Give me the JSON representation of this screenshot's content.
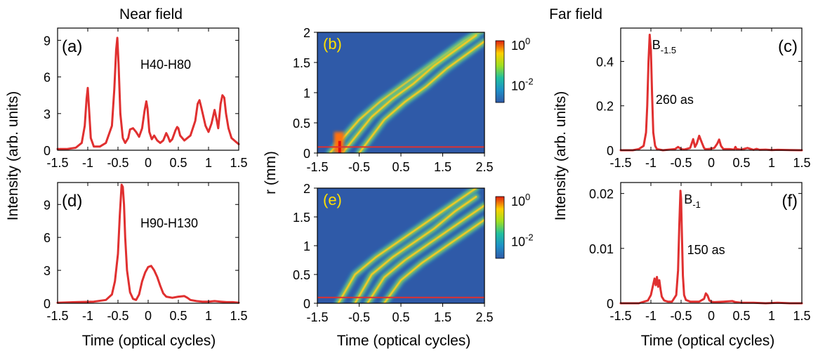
{
  "figure": {
    "near_field_title": "Near field",
    "far_field_title": "Far field",
    "ylabel_left": "Intensity (arb. units)",
    "ylabel_right": "Intensity (arb. units)",
    "ylabel_map": "r (mm)",
    "xlabel": "Time (optical cycles)"
  },
  "colors": {
    "line": "#e03030",
    "map_bg": "#2f5aa8",
    "text": "#000000",
    "map_label": "#ffe000"
  },
  "chart_data": [
    {
      "id": "a",
      "type": "line",
      "panel_label": "(a)",
      "annotation": "H40-H80",
      "xlim": [
        -1.5,
        1.5
      ],
      "ylim": [
        0,
        10
      ],
      "xticks": [
        "-1.5",
        "-1",
        "-0.5",
        "0",
        "0.5",
        "1",
        "1.5"
      ],
      "xtick_values": [
        -1.5,
        -1,
        -0.5,
        0,
        0.5,
        1,
        1.5
      ],
      "yticks": [
        "0",
        "3",
        "6",
        "9"
      ],
      "ytick_values": [
        0,
        3,
        6,
        9
      ],
      "series": [
        {
          "x": [
            -1.5,
            -1.35,
            -1.2,
            -1.1,
            -1.05,
            -1.02,
            -1.0,
            -0.98,
            -0.95,
            -0.9,
            -0.8,
            -0.7,
            -0.6,
            -0.56,
            -0.53,
            -0.51,
            -0.49,
            -0.46,
            -0.42,
            -0.38,
            -0.33,
            -0.3,
            -0.25,
            -0.2,
            -0.15,
            -0.1,
            -0.06,
            -0.03,
            -0.01,
            0.02,
            0.06,
            0.1,
            0.15,
            0.2,
            0.25,
            0.3,
            0.33,
            0.36,
            0.4,
            0.45,
            0.48,
            0.5,
            0.53,
            0.6,
            0.7,
            0.78,
            0.82,
            0.85,
            0.88,
            0.95,
            1.0,
            1.05,
            1.1,
            1.13,
            1.16,
            1.2,
            1.23,
            1.26,
            1.29,
            1.33,
            1.38,
            1.45,
            1.5
          ],
          "y": [
            0.1,
            0.1,
            0.2,
            0.6,
            2.0,
            4.2,
            5.1,
            3.5,
            1.0,
            0.3,
            0.3,
            0.6,
            2.0,
            5.0,
            8.2,
            9.2,
            7.0,
            3.0,
            1.0,
            0.6,
            1.0,
            1.7,
            1.8,
            1.5,
            1.1,
            1.8,
            3.2,
            4.0,
            3.4,
            1.5,
            0.9,
            1.2,
            0.8,
            0.6,
            0.8,
            1.4,
            1.1,
            0.7,
            0.9,
            1.6,
            1.9,
            1.8,
            1.2,
            0.8,
            1.2,
            2.4,
            3.8,
            4.1,
            3.5,
            2.0,
            1.5,
            2.2,
            3.3,
            2.6,
            1.8,
            3.8,
            4.5,
            4.3,
            3.0,
            1.8,
            1.0,
            0.7,
            0.5
          ]
        }
      ]
    },
    {
      "id": "d",
      "type": "line",
      "panel_label": "(d)",
      "annotation": "H90-H130",
      "xlim": [
        -1.5,
        1.5
      ],
      "ylim": [
        0,
        11
      ],
      "xticks": [
        "-1.5",
        "-1",
        "-0.5",
        "0",
        "0.5",
        "1",
        "1.5"
      ],
      "xtick_values": [
        -1.5,
        -1,
        -0.5,
        0,
        0.5,
        1,
        1.5
      ],
      "yticks": [
        "0",
        "3",
        "6",
        "9"
      ],
      "ytick_values": [
        0,
        3,
        6,
        9
      ],
      "series": [
        {
          "x": [
            -1.5,
            -1.2,
            -0.9,
            -0.7,
            -0.6,
            -0.55,
            -0.5,
            -0.47,
            -0.44,
            -0.42,
            -0.4,
            -0.38,
            -0.35,
            -0.3,
            -0.25,
            -0.2,
            -0.15,
            -0.1,
            -0.05,
            0.0,
            0.05,
            0.1,
            0.15,
            0.2,
            0.25,
            0.3,
            0.4,
            0.5,
            0.6,
            0.65,
            0.7,
            0.8,
            0.9,
            1.0,
            1.1,
            1.2,
            1.3,
            1.4,
            1.5
          ],
          "y": [
            0.05,
            0.1,
            0.15,
            0.3,
            0.8,
            2.0,
            4.5,
            8.0,
            10.8,
            10.6,
            9.0,
            6.0,
            3.0,
            1.0,
            0.4,
            0.3,
            0.8,
            2.0,
            2.8,
            3.3,
            3.4,
            3.0,
            2.4,
            1.6,
            0.9,
            0.6,
            0.5,
            0.6,
            0.65,
            0.5,
            0.3,
            0.2,
            0.15,
            0.15,
            0.2,
            0.15,
            0.1,
            0.1,
            0.05
          ]
        }
      ]
    },
    {
      "id": "c",
      "type": "line",
      "panel_label": "(c)",
      "annotation": "B",
      "annotation_sub": "-1.5",
      "annotation_extra": "260 as",
      "xlim": [
        -1.5,
        1.5
      ],
      "ylim": [
        0,
        0.55
      ],
      "xticks": [
        "-1.5",
        "-1",
        "-0.5",
        "0",
        "0.5",
        "1",
        "1.5"
      ],
      "xtick_values": [
        -1.5,
        -1,
        -0.5,
        0,
        0.5,
        1,
        1.5
      ],
      "yticks": [
        "0",
        "0.2",
        "0.4"
      ],
      "ytick_values": [
        0,
        0.2,
        0.4
      ],
      "series": [
        {
          "x": [
            -1.5,
            -1.3,
            -1.2,
            -1.12,
            -1.08,
            -1.06,
            -1.04,
            -1.02,
            -1.0,
            -0.98,
            -0.96,
            -0.93,
            -0.9,
            -0.8,
            -0.7,
            -0.6,
            -0.55,
            -0.5,
            -0.45,
            -0.35,
            -0.3,
            -0.27,
            -0.24,
            -0.2,
            -0.15,
            -0.12,
            -0.1,
            -0.05,
            0.05,
            0.1,
            0.13,
            0.16,
            0.2,
            0.3,
            0.38,
            0.4,
            0.42,
            0.5,
            0.6,
            0.7,
            0.75,
            0.8,
            0.9,
            1.0,
            1.1,
            1.3,
            1.5
          ],
          "y": [
            0.0,
            0.0,
            0.005,
            0.02,
            0.08,
            0.2,
            0.4,
            0.52,
            0.45,
            0.25,
            0.08,
            0.02,
            0.005,
            0.0,
            0.003,
            0.005,
            0.015,
            0.005,
            0.003,
            0.01,
            0.05,
            0.015,
            0.03,
            0.065,
            0.03,
            0.01,
            0.005,
            0.005,
            0.01,
            0.03,
            0.048,
            0.02,
            0.005,
            0.005,
            0.003,
            0.015,
            0.005,
            0.003,
            0.01,
            0.002,
            0.006,
            0.002,
            0.003,
            0.001,
            0.002,
            0.001,
            0.0
          ]
        }
      ]
    },
    {
      "id": "f",
      "type": "line",
      "panel_label": "(f)",
      "annotation": "B",
      "annotation_sub": "-1",
      "annotation_extra": "150 as",
      "xlim": [
        -1.5,
        1.5
      ],
      "ylim": [
        0,
        0.022
      ],
      "xticks": [
        "-1.5",
        "-1",
        "-0.5",
        "0",
        "0.5",
        "1",
        "1.5"
      ],
      "xtick_values": [
        -1.5,
        -1,
        -0.5,
        0,
        0.5,
        1,
        1.5
      ],
      "yticks": [
        "0",
        "0.01",
        "0.02"
      ],
      "ytick_values": [
        0,
        0.01,
        0.02
      ],
      "series": [
        {
          "x": [
            -1.5,
            -1.2,
            -1.05,
            -1.0,
            -0.97,
            -0.94,
            -0.92,
            -0.9,
            -0.88,
            -0.86,
            -0.84,
            -0.82,
            -0.78,
            -0.72,
            -0.65,
            -0.58,
            -0.55,
            -0.53,
            -0.51,
            -0.5,
            -0.49,
            -0.47,
            -0.45,
            -0.42,
            -0.35,
            -0.2,
            -0.12,
            -0.09,
            -0.06,
            -0.03,
            0.0,
            0.05,
            0.2,
            0.35,
            0.4,
            0.5,
            0.7,
            0.9,
            1.1,
            1.3,
            1.5
          ],
          "y": [
            0.0,
            0.0,
            0.0005,
            0.0015,
            0.003,
            0.0045,
            0.0033,
            0.0048,
            0.003,
            0.0042,
            0.0025,
            0.0012,
            0.0005,
            0.0003,
            0.0003,
            0.0015,
            0.006,
            0.014,
            0.0205,
            0.019,
            0.014,
            0.005,
            0.0015,
            0.0006,
            0.0003,
            0.0003,
            0.0008,
            0.0018,
            0.0014,
            0.0005,
            0.0003,
            0.0002,
            0.0003,
            0.0004,
            0.0002,
            0.0001,
            0.0001,
            0.0,
            0.0001,
            0.0,
            0.0
          ]
        }
      ]
    },
    {
      "id": "b",
      "type": "heatmap",
      "panel_label": "(b)",
      "xlim": [
        -1.5,
        2.5
      ],
      "ylim": [
        0,
        2
      ],
      "xticks": [
        "-1.5",
        "-0.5",
        "0.5",
        "1.5",
        "2.5"
      ],
      "xtick_values": [
        -1.5,
        -0.5,
        0.5,
        1.5,
        2.5
      ],
      "yticks": [
        "0",
        "0.5",
        "1",
        "1.5",
        "2"
      ],
      "ytick_values": [
        0,
        0.5,
        1,
        1.5,
        2
      ],
      "colorbar": {
        "scale": "log",
        "ticks": [
          "10",
          "10"
        ],
        "tick_exponents": [
          "0",
          "-2"
        ]
      },
      "reference_line_r": 0.1,
      "traces": [
        {
          "x": [
            -1.2,
            -0.5,
            0.0,
            0.5,
            1.0,
            1.5,
            2.0,
            2.5
          ],
          "r": [
            0.0,
            0.55,
            0.85,
            1.1,
            1.35,
            1.6,
            1.85,
            2.05
          ]
        },
        {
          "x": [
            -0.9,
            -0.2,
            0.3,
            0.8,
            1.3,
            1.8,
            2.3
          ],
          "r": [
            0.0,
            0.6,
            0.9,
            1.15,
            1.45,
            1.7,
            1.95
          ]
        },
        {
          "x": [
            -0.5,
            0.1,
            0.6,
            1.1,
            1.6,
            2.1,
            2.5
          ],
          "r": [
            0.0,
            0.55,
            0.85,
            1.1,
            1.4,
            1.65,
            1.85
          ]
        }
      ]
    },
    {
      "id": "e",
      "type": "heatmap",
      "panel_label": "(e)",
      "xlim": [
        -1.5,
        2.5
      ],
      "ylim": [
        0,
        2
      ],
      "xticks": [
        "-1.5",
        "-0.5",
        "0.5",
        "1.5",
        "2.5"
      ],
      "xtick_values": [
        -1.5,
        -0.5,
        0.5,
        1.5,
        2.5
      ],
      "yticks": [
        "0",
        "0.5",
        "1",
        "1.5",
        "2"
      ],
      "ytick_values": [
        0,
        0.5,
        1,
        1.5,
        2
      ],
      "colorbar": {
        "scale": "log",
        "ticks": [
          "10",
          "10"
        ],
        "tick_exponents": [
          "0",
          "-2"
        ]
      },
      "reference_line_r": 0.1,
      "traces": [
        {
          "x": [
            -1.0,
            -0.6,
            -0.1,
            0.4,
            0.9,
            1.4,
            1.9,
            2.3
          ],
          "r": [
            0.0,
            0.5,
            0.8,
            1.05,
            1.3,
            1.55,
            1.8,
            2.0
          ]
        },
        {
          "x": [
            -0.6,
            -0.2,
            0.3,
            0.8,
            1.3,
            1.8,
            2.3
          ],
          "r": [
            0.0,
            0.5,
            0.8,
            1.05,
            1.3,
            1.6,
            1.85
          ]
        },
        {
          "x": [
            -0.3,
            0.1,
            0.6,
            1.1,
            1.6,
            2.1,
            2.5
          ],
          "r": [
            0.0,
            0.45,
            0.75,
            1.0,
            1.25,
            1.5,
            1.7
          ]
        },
        {
          "x": [
            0.1,
            0.5,
            1.0,
            1.5,
            2.0,
            2.5
          ],
          "r": [
            0.0,
            0.4,
            0.7,
            0.95,
            1.2,
            1.45
          ]
        }
      ]
    }
  ]
}
